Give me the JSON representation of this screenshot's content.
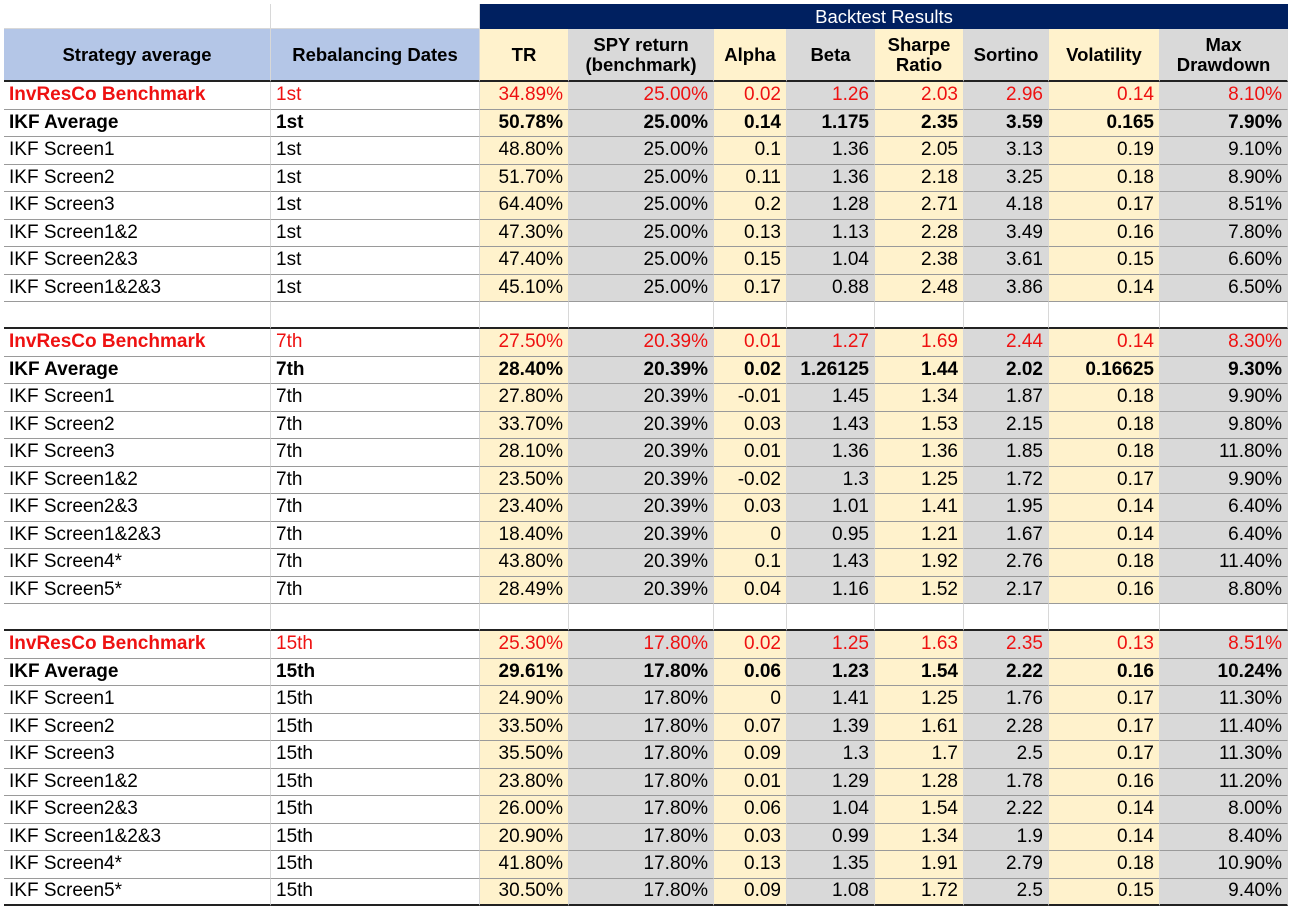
{
  "title": "Backtest Results",
  "colors": {
    "title_bg": "#002060",
    "header_blue": "#b4c6e7",
    "col_yellow": "#fff2cc",
    "col_gray": "#d9d9d9",
    "benchmark_red": "#ee1111"
  },
  "headers": [
    "Strategy average",
    "Rebalancing Dates",
    "TR",
    "SPY return (benchmark)",
    "Alpha",
    "Beta",
    "Sharpe Ratio",
    "Sortino",
    "Volatility",
    "Max Drawdown"
  ],
  "column_fill": [
    "blue",
    "blue",
    "yellow",
    "gray",
    "yellow",
    "gray",
    "yellow",
    "gray",
    "yellow",
    "gray"
  ],
  "sections": [
    {
      "rows": [
        {
          "style": "benchmark",
          "cells": [
            "InvResCo Benchmark",
            "1st",
            "34.89%",
            "25.00%",
            "0.02",
            "1.26",
            "2.03",
            "2.96",
            "0.14",
            "8.10%"
          ]
        },
        {
          "style": "average",
          "cells": [
            "IKF Average",
            "1st",
            "50.78%",
            "25.00%",
            "0.14",
            "1.175",
            "2.35",
            "3.59",
            "0.165",
            "7.90%"
          ]
        },
        {
          "style": "normal",
          "cells": [
            "IKF Screen1",
            "1st",
            "48.80%",
            "25.00%",
            "0.1",
            "1.36",
            "2.05",
            "3.13",
            "0.19",
            "9.10%"
          ]
        },
        {
          "style": "normal",
          "cells": [
            "IKF Screen2",
            "1st",
            "51.70%",
            "25.00%",
            "0.11",
            "1.36",
            "2.18",
            "3.25",
            "0.18",
            "8.90%"
          ]
        },
        {
          "style": "normal",
          "cells": [
            "IKF Screen3",
            "1st",
            "64.40%",
            "25.00%",
            "0.2",
            "1.28",
            "2.71",
            "4.18",
            "0.17",
            "8.51%"
          ]
        },
        {
          "style": "normal",
          "cells": [
            "IKF Screen1&2",
            "1st",
            "47.30%",
            "25.00%",
            "0.13",
            "1.13",
            "2.28",
            "3.49",
            "0.16",
            "7.80%"
          ]
        },
        {
          "style": "normal",
          "cells": [
            "IKF Screen2&3",
            "1st",
            "47.40%",
            "25.00%",
            "0.15",
            "1.04",
            "2.38",
            "3.61",
            "0.15",
            "6.60%"
          ]
        },
        {
          "style": "normal",
          "cells": [
            "IKF Screen1&2&3",
            "1st",
            "45.10%",
            "25.00%",
            "0.17",
            "0.88",
            "2.48",
            "3.86",
            "0.14",
            "6.50%"
          ]
        }
      ]
    },
    {
      "rows": [
        {
          "style": "benchmark",
          "cells": [
            "InvResCo Benchmark",
            "7th",
            "27.50%",
            "20.39%",
            "0.01",
            "1.27",
            "1.69",
            "2.44",
            "0.14",
            "8.30%"
          ]
        },
        {
          "style": "average",
          "cells": [
            "IKF Average",
            "7th",
            "28.40%",
            "20.39%",
            "0.02",
            "1.26125",
            "1.44",
            "2.02",
            "0.16625",
            "9.30%"
          ]
        },
        {
          "style": "normal",
          "cells": [
            "IKF Screen1",
            "7th",
            "27.80%",
            "20.39%",
            "-0.01",
            "1.45",
            "1.34",
            "1.87",
            "0.18",
            "9.90%"
          ]
        },
        {
          "style": "normal",
          "cells": [
            "IKF Screen2",
            "7th",
            "33.70%",
            "20.39%",
            "0.03",
            "1.43",
            "1.53",
            "2.15",
            "0.18",
            "9.80%"
          ]
        },
        {
          "style": "normal",
          "cells": [
            "IKF Screen3",
            "7th",
            "28.10%",
            "20.39%",
            "0.01",
            "1.36",
            "1.36",
            "1.85",
            "0.18",
            "11.80%"
          ]
        },
        {
          "style": "normal",
          "cells": [
            "IKF Screen1&2",
            "7th",
            "23.50%",
            "20.39%",
            "-0.02",
            "1.3",
            "1.25",
            "1.72",
            "0.17",
            "9.90%"
          ]
        },
        {
          "style": "normal",
          "cells": [
            "IKF Screen2&3",
            "7th",
            "23.40%",
            "20.39%",
            "0.03",
            "1.01",
            "1.41",
            "1.95",
            "0.14",
            "6.40%"
          ]
        },
        {
          "style": "normal",
          "cells": [
            "IKF Screen1&2&3",
            "7th",
            "18.40%",
            "20.39%",
            "0",
            "0.95",
            "1.21",
            "1.67",
            "0.14",
            "6.40%"
          ]
        },
        {
          "style": "normal",
          "cells": [
            "IKF Screen4*",
            "7th",
            "43.80%",
            "20.39%",
            "0.1",
            "1.43",
            "1.92",
            "2.76",
            "0.18",
            "11.40%"
          ]
        },
        {
          "style": "normal",
          "cells": [
            "IKF Screen5*",
            "7th",
            "28.49%",
            "20.39%",
            "0.04",
            "1.16",
            "1.52",
            "2.17",
            "0.16",
            "8.80%"
          ]
        }
      ]
    },
    {
      "rows": [
        {
          "style": "benchmark",
          "cells": [
            "InvResCo Benchmark",
            "15th",
            "25.30%",
            "17.80%",
            "0.02",
            "1.25",
            "1.63",
            "2.35",
            "0.13",
            "8.51%"
          ]
        },
        {
          "style": "average",
          "cells": [
            "IKF Average",
            "15th",
            "29.61%",
            "17.80%",
            "0.06",
            "1.23",
            "1.54",
            "2.22",
            "0.16",
            "10.24%"
          ]
        },
        {
          "style": "normal",
          "cells": [
            "IKF Screen1",
            "15th",
            "24.90%",
            "17.80%",
            "0",
            "1.41",
            "1.25",
            "1.76",
            "0.17",
            "11.30%"
          ]
        },
        {
          "style": "normal",
          "cells": [
            "IKF Screen2",
            "15th",
            "33.50%",
            "17.80%",
            "0.07",
            "1.39",
            "1.61",
            "2.28",
            "0.17",
            "11.40%"
          ]
        },
        {
          "style": "normal",
          "cells": [
            "IKF Screen3",
            "15th",
            "35.50%",
            "17.80%",
            "0.09",
            "1.3",
            "1.7",
            "2.5",
            "0.17",
            "11.30%"
          ]
        },
        {
          "style": "normal",
          "cells": [
            "IKF Screen1&2",
            "15th",
            "23.80%",
            "17.80%",
            "0.01",
            "1.29",
            "1.28",
            "1.78",
            "0.16",
            "11.20%"
          ]
        },
        {
          "style": "normal",
          "cells": [
            "IKF Screen2&3",
            "15th",
            "26.00%",
            "17.80%",
            "0.06",
            "1.04",
            "1.54",
            "2.22",
            "0.14",
            "8.00%"
          ]
        },
        {
          "style": "normal",
          "cells": [
            "IKF Screen1&2&3",
            "15th",
            "20.90%",
            "17.80%",
            "0.03",
            "0.99",
            "1.34",
            "1.9",
            "0.14",
            "8.40%"
          ]
        },
        {
          "style": "normal",
          "cells": [
            "IKF Screen4*",
            "15th",
            "41.80%",
            "17.80%",
            "0.13",
            "1.35",
            "1.91",
            "2.79",
            "0.18",
            "10.90%"
          ]
        },
        {
          "style": "normal",
          "cells": [
            "IKF Screen5*",
            "15th",
            "30.50%",
            "17.80%",
            "0.09",
            "1.08",
            "1.72",
            "2.5",
            "0.15",
            "9.40%"
          ]
        }
      ]
    }
  ]
}
